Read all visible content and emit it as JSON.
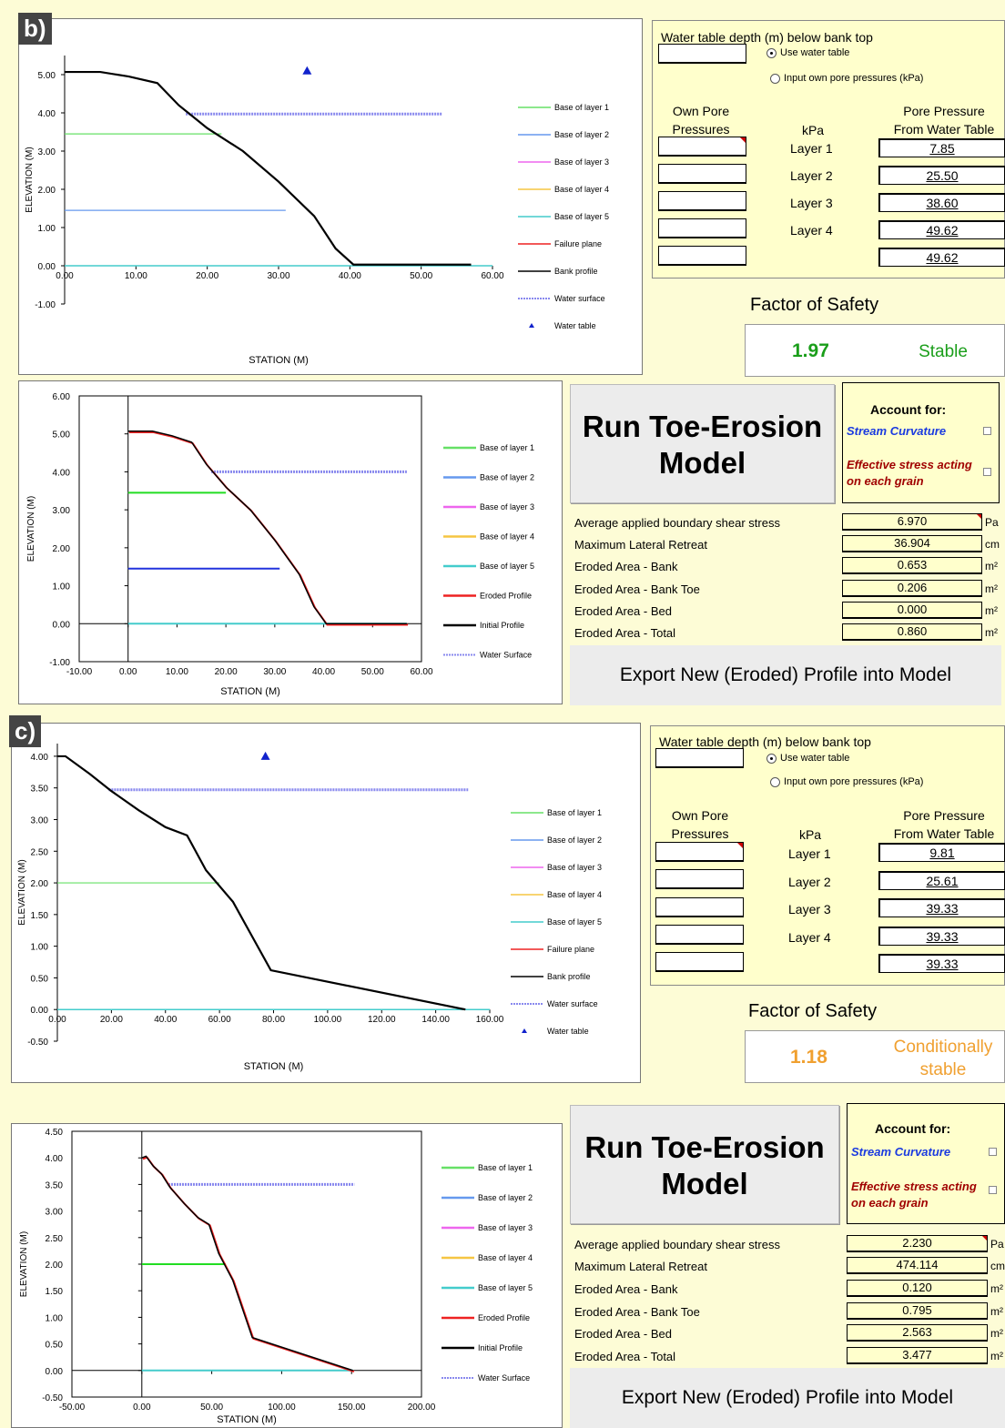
{
  "panels": {
    "b": {
      "tag": "b)",
      "stability_chart": {
        "type": "line",
        "xlabel": "STATION (M)",
        "ylabel": "ELEVATION (M)",
        "xticks": [
          "0.00",
          "10.00",
          "20.00",
          "30.00",
          "40.00",
          "50.00",
          "60.00"
        ],
        "yticks": [
          "-1.00",
          "0.00",
          "1.00",
          "2.00",
          "3.00",
          "4.00",
          "5.00"
        ],
        "xlim": [
          0,
          60
        ],
        "ylim": [
          -1,
          5.5
        ],
        "bank_profile": [
          [
            0,
            5.07
          ],
          [
            5,
            5.07
          ],
          [
            9,
            4.95
          ],
          [
            13,
            4.78
          ],
          [
            16,
            4.2
          ],
          [
            20,
            3.6
          ],
          [
            25,
            3.0
          ],
          [
            30,
            2.2
          ],
          [
            35,
            1.3
          ],
          [
            38,
            0.45
          ],
          [
            40.5,
            0.03
          ],
          [
            57,
            0.03
          ]
        ],
        "layers": [
          {
            "name": "Base of layer 1",
            "color": "#66e066",
            "y": 3.45,
            "x_end": 22
          },
          {
            "name": "Base of layer 2",
            "color": "#6699ee",
            "y": 1.45,
            "x_end": 31
          }
        ],
        "water_surface": {
          "x": [
            17,
            53
          ],
          "y": 3.97
        },
        "water_table": {
          "x": 34,
          "y": 5.1
        },
        "legend": [
          "Base of layer 1",
          "Base of layer 2",
          "Base of layer 3",
          "Base of layer 4",
          "Base of layer 5",
          "Failure plane",
          "Bank profile",
          "Water surface",
          "Water table"
        ]
      },
      "water_table_depth_label": "Water table depth (m) below bank top",
      "radio_use": "Use water table",
      "radio_input": "Input own pore pressures (kPa)",
      "own_pore_head": "Own Pore\nPressures",
      "kpa_head": "kPa",
      "pp_head": "Pore Pressure\nFrom Water Table",
      "layer_labels": [
        "Layer 1",
        "Layer 2",
        "Layer 3",
        "Layer 4"
      ],
      "pore_values": [
        "7.85",
        "25.50",
        "38.60",
        "49.62",
        "49.62"
      ],
      "fos_title": "Factor of Safety",
      "fos_value": "1.97",
      "fos_status": "Stable",
      "fos_color": "#1a9e1a",
      "erosion_chart": {
        "type": "line",
        "xlabel": "STATION (M)",
        "ylabel": "ELEVATION (M)",
        "xticks": [
          "-10.00",
          "0.00",
          "10.00",
          "20.00",
          "30.00",
          "40.00",
          "50.00",
          "60.00"
        ],
        "yticks": [
          "-1.00",
          "0.00",
          "1.00",
          "2.00",
          "3.00",
          "4.00",
          "5.00",
          "6.00"
        ],
        "xlim": [
          -10,
          60
        ],
        "ylim": [
          -1,
          6
        ],
        "initial_profile": [
          [
            0,
            5.07
          ],
          [
            5,
            5.07
          ],
          [
            9,
            4.95
          ],
          [
            13,
            4.78
          ],
          [
            16,
            4.2
          ],
          [
            20,
            3.6
          ],
          [
            25,
            3.0
          ],
          [
            30,
            2.2
          ],
          [
            35,
            1.3
          ],
          [
            38,
            0.45
          ],
          [
            40.5,
            0.0
          ],
          [
            57,
            0.0
          ]
        ],
        "layers": [
          {
            "name": "Base of layer 1",
            "color": "#22dd22",
            "y": 3.45,
            "x_end": 20
          },
          {
            "name": "Base of layer 2",
            "color": "#2233dd",
            "y": 1.45,
            "x_end": 31
          }
        ],
        "water_surface": {
          "x": [
            17,
            57
          ],
          "y": 4.0
        },
        "legend": [
          "Base of layer 1",
          "Base of layer 2",
          "Base of layer 3",
          "Base of layer 4",
          "Base of layer 5",
          "Eroded Profile",
          "Initial Profile",
          "Water Surface"
        ]
      },
      "run_button": "Run Toe-Erosion Model",
      "account_title": "Account for:",
      "opt_curvature": "Stream Curvature",
      "opt_effective": "Effective stress acting on each grain",
      "results": [
        {
          "label": "Average applied boundary shear stress",
          "value": "6.970",
          "unit": "Pa"
        },
        {
          "label": "Maximum Lateral Retreat",
          "value": "36.904",
          "unit": "cm"
        },
        {
          "label": "Eroded Area - Bank",
          "value": "0.653",
          "unit": "m²"
        },
        {
          "label": "Eroded Area - Bank Toe",
          "value": "0.206",
          "unit": "m²"
        },
        {
          "label": "Eroded Area - Bed",
          "value": "0.000",
          "unit": "m²"
        },
        {
          "label": "Eroded Area - Total",
          "value": "0.860",
          "unit": "m²"
        }
      ],
      "export_button": "Export New (Eroded) Profile into Model"
    },
    "c": {
      "tag": "c)",
      "stability_chart": {
        "type": "line",
        "xlabel": "STATION (M)",
        "ylabel": "ELEVATION (M)",
        "xticks": [
          "0.00",
          "20.00",
          "40.00",
          "60.00",
          "80.00",
          "100.00",
          "120.00",
          "140.00",
          "160.00"
        ],
        "yticks": [
          "-0.50",
          "0.00",
          "0.50",
          "1.00",
          "1.50",
          "2.00",
          "2.50",
          "3.00",
          "3.50",
          "4.00"
        ],
        "xlim": [
          0,
          160
        ],
        "ylim": [
          -0.5,
          4.2
        ],
        "bank_profile": [
          [
            0,
            4.0
          ],
          [
            3,
            4.0
          ],
          [
            12,
            3.72
          ],
          [
            20,
            3.45
          ],
          [
            30,
            3.15
          ],
          [
            40,
            2.88
          ],
          [
            48,
            2.75
          ],
          [
            55,
            2.2
          ],
          [
            65,
            1.7
          ],
          [
            79,
            0.62
          ],
          [
            151,
            0.0
          ]
        ],
        "layers": [
          {
            "name": "Base of layer 1",
            "color": "#66e066",
            "y": 2.0,
            "x_end": 60
          }
        ],
        "water_surface": {
          "x": [
            19,
            152
          ],
          "y": 3.47
        },
        "water_table": {
          "x": 77,
          "y": 4.0
        },
        "legend": [
          "Base of layer 1",
          "Base of layer 2",
          "Base of layer 3",
          "Base of layer 4",
          "Base of layer 5",
          "Failure plane",
          "Bank profile",
          "Water surface",
          "Water table"
        ]
      },
      "water_table_depth_label": "Water table depth (m) below bank top",
      "radio_use": "Use water table",
      "radio_input": "Input own pore pressures (kPa)",
      "own_pore_head": "Own Pore\nPressures",
      "kpa_head": "kPa",
      "pp_head": "Pore Pressure\nFrom Water Table",
      "layer_labels": [
        "Layer 1",
        "Layer 2",
        "Layer 3",
        "Layer 4"
      ],
      "pore_values": [
        "9.81",
        "25.61",
        "39.33",
        "39.33",
        "39.33"
      ],
      "fos_title": "Factor of Safety",
      "fos_value": "1.18",
      "fos_status": "Conditionally stable",
      "fos_color": "#f0a030",
      "erosion_chart": {
        "type": "line",
        "xlabel": "STATION (M)",
        "ylabel": "ELEVATION (M)",
        "xticks": [
          "-50.00",
          "0.00",
          "50.00",
          "100.00",
          "150.00",
          "200.00"
        ],
        "yticks": [
          "-0.50",
          "0.00",
          "0.50",
          "1.00",
          "1.50",
          "2.00",
          "2.50",
          "3.00",
          "3.50",
          "4.00",
          "4.50"
        ],
        "xlim": [
          -50,
          200
        ],
        "ylim": [
          -0.5,
          4.5
        ],
        "initial_profile": [
          [
            0,
            4.0
          ],
          [
            3,
            4.03
          ],
          [
            8,
            3.85
          ],
          [
            14,
            3.7
          ],
          [
            20,
            3.45
          ],
          [
            30,
            3.15
          ],
          [
            40,
            2.88
          ],
          [
            48,
            2.75
          ],
          [
            55,
            2.2
          ],
          [
            65,
            1.7
          ],
          [
            79,
            0.62
          ],
          [
            151,
            0.0
          ]
        ],
        "layers": [
          {
            "name": "Base of layer 1",
            "color": "#22dd22",
            "y": 2.0,
            "x_end": 60
          }
        ],
        "water_surface": {
          "x": [
            19,
            152
          ],
          "y": 3.5
        },
        "legend": [
          "Base of layer 1",
          "Base of layer 2",
          "Base of layer 3",
          "Base of layer 4",
          "Base of layer 5",
          "Eroded Profile",
          "Initial Profile",
          "Water Surface"
        ]
      },
      "run_button": "Run Toe-Erosion Model",
      "account_title": "Account for:",
      "opt_curvature": "Stream Curvature",
      "opt_effective": "Effective stress acting on each grain",
      "results": [
        {
          "label": "Average applied boundary shear stress",
          "value": "2.230",
          "unit": "Pa"
        },
        {
          "label": "Maximum Lateral Retreat",
          "value": "474.114",
          "unit": "cm"
        },
        {
          "label": "Eroded Area - Bank",
          "value": "0.120",
          "unit": "m²"
        },
        {
          "label": "Eroded Area - Bank Toe",
          "value": "0.795",
          "unit": "m²"
        },
        {
          "label": "Eroded Area - Bed",
          "value": "2.563",
          "unit": "m²"
        },
        {
          "label": "Eroded Area - Total",
          "value": "3.477",
          "unit": "m²"
        }
      ],
      "export_button": "Export New (Eroded) Profile into Model"
    }
  },
  "legend_colors": {
    "Base of layer 1": "#66e066",
    "Base of layer 2": "#6699ee",
    "Base of layer 3": "#ee66ee",
    "Base of layer 4": "#f5c542",
    "Base of layer 5": "#44cccc",
    "Failure plane": "#ee2222",
    "Bank profile": "#000000",
    "Eroded Profile": "#ee2222",
    "Initial Profile": "#000000",
    "Water surface": "#8888ee",
    "Water Surface": "#8888ee",
    "Water table": "#1122cc"
  }
}
